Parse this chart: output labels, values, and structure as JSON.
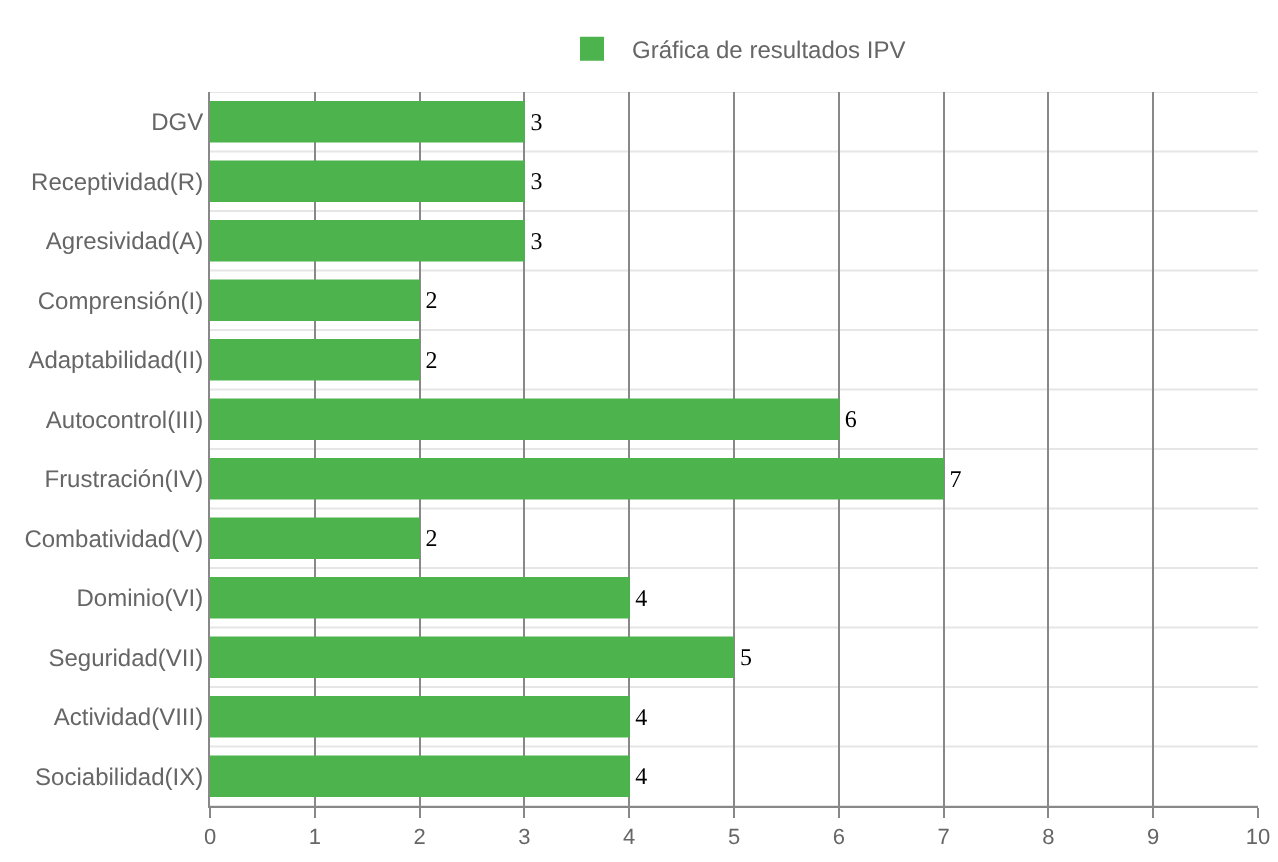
{
  "chart_data": {
    "type": "bar",
    "orientation": "horizontal",
    "categories": [
      "DGV",
      "Receptividad(R)",
      "Agresividad(A)",
      "Comprensión(I)",
      "Adaptabilidad(II)",
      "Autocontrol(III)",
      "Frustración(IV)",
      "Combatividad(V)",
      "Dominio(VI)",
      "Seguridad(VII)",
      "Actividad(VIII)",
      "Sociabilidad(IX)"
    ],
    "series": [
      {
        "name": "Gráfica de resultados IPV",
        "color": "#4db34d",
        "values": [
          3,
          3,
          3,
          2,
          2,
          6,
          7,
          2,
          4,
          5,
          4,
          4
        ]
      }
    ],
    "xlim": [
      0,
      10
    ],
    "xticks": [
      0,
      1,
      2,
      3,
      4,
      5,
      6,
      7,
      8,
      9,
      10
    ],
    "grid": true,
    "legend": "top",
    "data_labels": true
  }
}
